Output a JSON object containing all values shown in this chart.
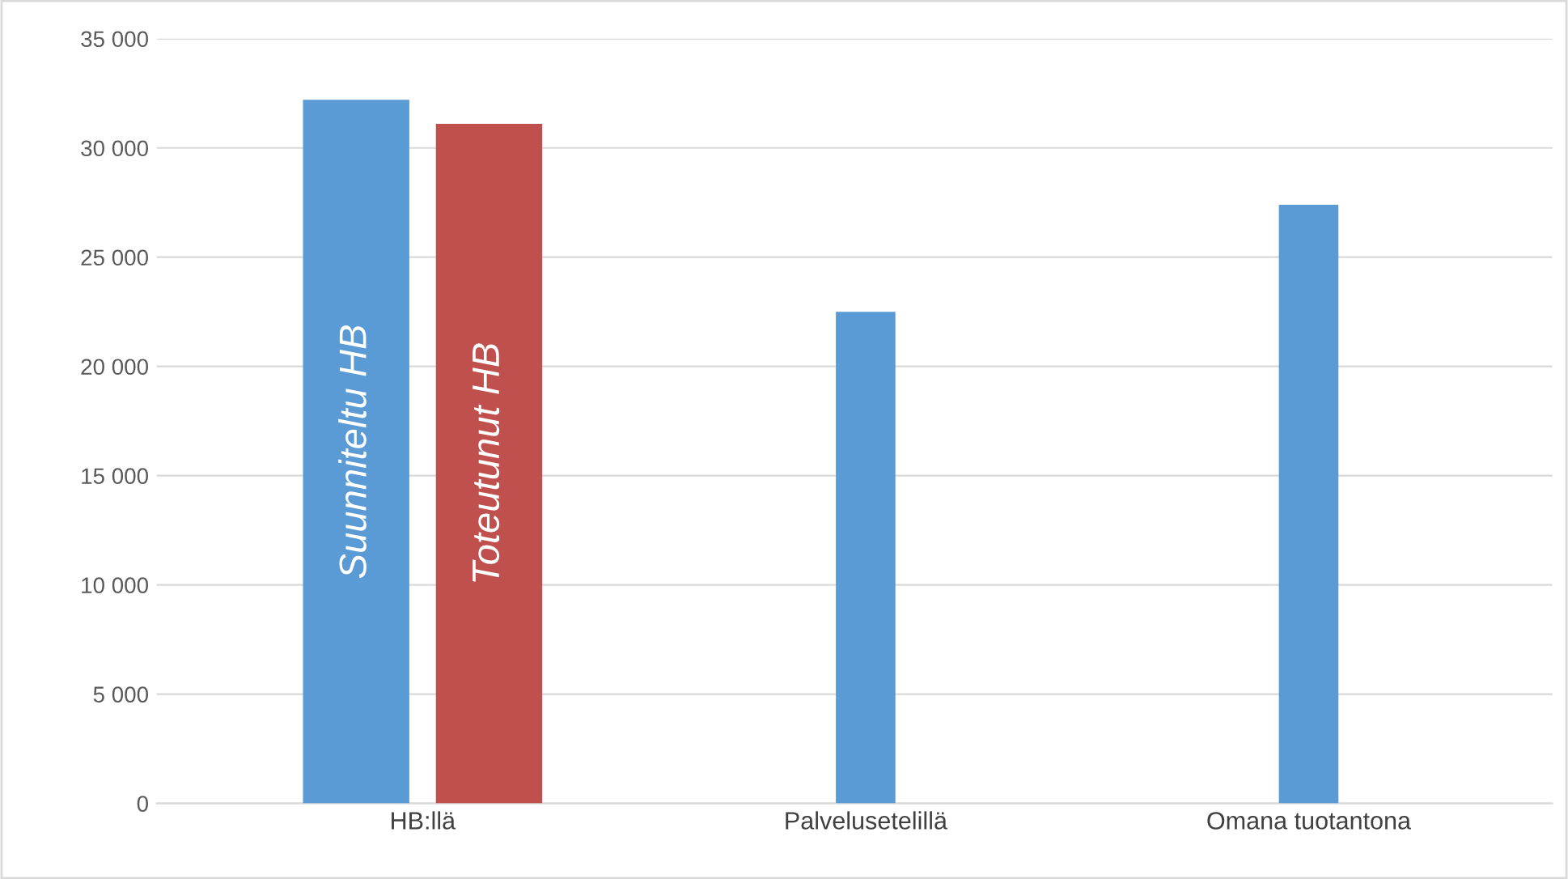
{
  "chart_data": {
    "type": "bar",
    "categories": [
      "HB:llä",
      "Palvelusetelillä",
      "Omana tuotantona"
    ],
    "series": [
      {
        "name": "Suunniteltu HB",
        "color": "#5b9bd5",
        "values": [
          32200,
          22500,
          27400
        ]
      },
      {
        "name": "Toteutunut HB",
        "color": "#c0504d",
        "values": [
          31100,
          null,
          null
        ]
      }
    ],
    "ylim": [
      0,
      35000
    ],
    "yticks": [
      {
        "value": 0,
        "label": "0"
      },
      {
        "value": 5000,
        "label": "5 000"
      },
      {
        "value": 10000,
        "label": "10 000"
      },
      {
        "value": 15000,
        "label": "15 000"
      },
      {
        "value": 20000,
        "label": "20 000"
      },
      {
        "value": 25000,
        "label": "25 000"
      },
      {
        "value": 30000,
        "label": "30 000"
      },
      {
        "value": 35000,
        "label": "35 000"
      }
    ],
    "grid": "y",
    "legend": false
  }
}
